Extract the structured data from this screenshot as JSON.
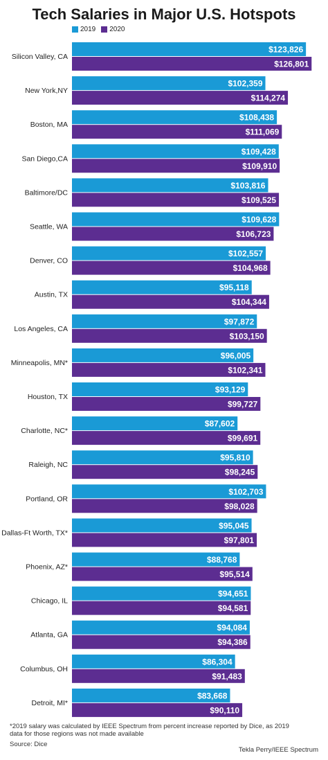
{
  "chart_data": {
    "type": "bar",
    "orientation": "horizontal",
    "title": "Tech Salaries in Major U.S. Hotspots",
    "legend_placement": "top-left",
    "grid": false,
    "xlim": [
      0,
      130000
    ],
    "categories": [
      "Silicon Valley, CA",
      "New York,NY",
      "Boston, MA",
      "San Diego,CA",
      "Baltimore/DC",
      "Seattle, WA",
      "Denver, CO",
      "Austin, TX",
      "Los Angeles, CA",
      "Minneapolis, MN*",
      "Houston, TX",
      "Charlotte, NC*",
      "Raleigh, NC",
      "Portland, OR",
      "Dallas-Ft Worth, TX*",
      "Phoenix, AZ*",
      "Chicago, IL",
      "Atlanta, GA",
      "Columbus, OH",
      "Detroit, MI*"
    ],
    "series": [
      {
        "name": "2019",
        "color": "#1a9ad6",
        "values": [
          123826,
          102359,
          108438,
          109428,
          103816,
          109628,
          102557,
          95118,
          97872,
          96005,
          93129,
          87602,
          95810,
          102703,
          95045,
          88768,
          94651,
          94084,
          86304,
          83668
        ],
        "labels": [
          "$123,826",
          "$102,359",
          "$108,438",
          "$109,428",
          "$103,816",
          "$109,628",
          "$102,557",
          "$95,118",
          "$97,872",
          "$96,005",
          "$93,129",
          "$87,602",
          "$95,810",
          "$102,703",
          "$95,045",
          "$88,768",
          "$94,651",
          "$94,084",
          "$86,304",
          "$83,668"
        ]
      },
      {
        "name": "2020",
        "color": "#5c2d91",
        "values": [
          126801,
          114274,
          111069,
          109910,
          109525,
          106723,
          104968,
          104344,
          103150,
          102341,
          99727,
          99691,
          98245,
          98028,
          97801,
          95514,
          94581,
          94386,
          91483,
          90110
        ],
        "labels": [
          "$126,801",
          "$114,274",
          "$111,069",
          "$109,910",
          "$109,525",
          "$106,723",
          "$104,968",
          "$104,344",
          "$103,150",
          "$102,341",
          "$99,727",
          "$99,691",
          "$98,245",
          "$98,028",
          "$97,801",
          "$95,514",
          "$94,581",
          "$94,386",
          "$91,483",
          "$90,110"
        ]
      }
    ]
  },
  "footnote": "*2019 salary was calculated by IEEE Spectrum from percent increase reported by Dice, as 2019 data for those regions was not made available",
  "source": "Source: Dice",
  "credit": "Tekla Perry/IEEE Spectrum"
}
